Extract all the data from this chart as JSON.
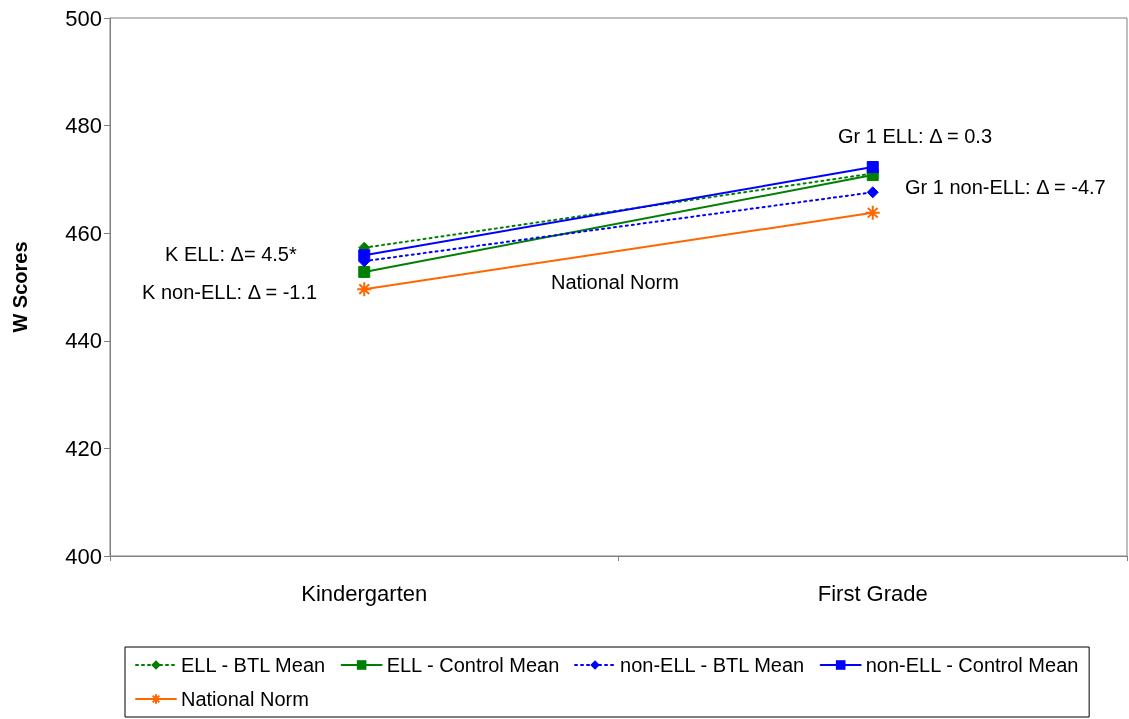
{
  "chart_data": {
    "type": "line",
    "ylabel": "W Scores",
    "categories": [
      "Kindergarten",
      "First Grade"
    ],
    "ylim": [
      400,
      500
    ],
    "yticks": [
      400,
      420,
      440,
      460,
      480,
      500
    ],
    "grid": false,
    "legend": "bottom",
    "series": [
      {
        "name": "ELL - BTL Mean",
        "color": "#008000",
        "values": [
          457.3,
          471.1
        ],
        "marker": "diamond",
        "line_style": "dotted"
      },
      {
        "name": "ELL - Control Mean",
        "color": "#008000",
        "values": [
          452.8,
          470.8
        ],
        "marker": "square",
        "line_style": "solid"
      },
      {
        "name": "non-ELL - BTL Mean",
        "color": "#0000ff",
        "values": [
          454.8,
          467.6
        ],
        "marker": "diamond",
        "line_style": "dotted"
      },
      {
        "name": "non-ELL - Control Mean",
        "color": "#0000ff",
        "values": [
          455.9,
          472.3
        ],
        "marker": "square",
        "line_style": "solid"
      },
      {
        "name": "National Norm",
        "color": "#ff6600",
        "values": [
          449.6,
          463.8
        ],
        "marker": "cross",
        "line_style": "solid"
      }
    ],
    "annotations": [
      "K ELL: Δ= 4.5*",
      "K non-ELL: Δ = -1.1",
      "National Norm",
      "Gr 1 ELL: Δ = 0.3",
      "Gr 1 non-ELL: Δ = -4.7"
    ]
  }
}
